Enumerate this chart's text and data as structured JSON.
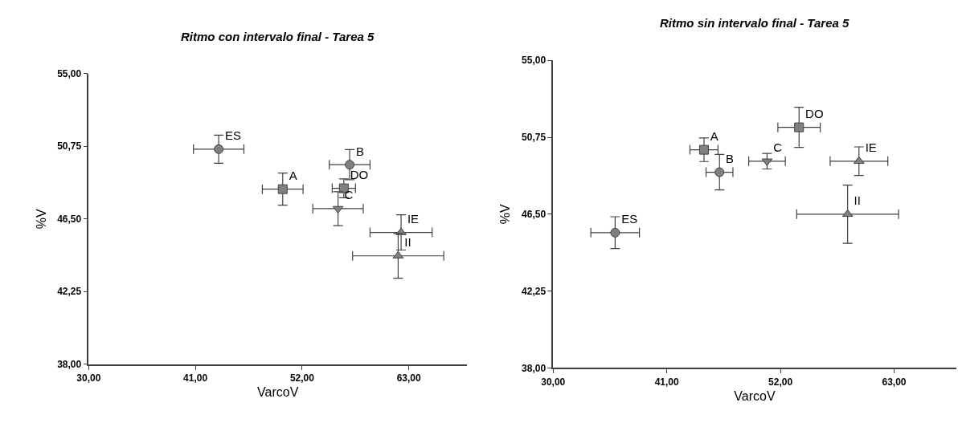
{
  "chart_data": [
    {
      "type": "scatter",
      "title": "Ritmo con intervalo final - Tarea 5",
      "xlabel": "VarcoV",
      "ylabel": "%V",
      "xlim": [
        30,
        69
      ],
      "ylim": [
        38,
        55
      ],
      "xticks": [
        {
          "value": 30,
          "label": "30,00"
        },
        {
          "value": 41,
          "label": "41,00"
        },
        {
          "value": 52,
          "label": "52,00"
        },
        {
          "value": 63,
          "label": "63,00"
        }
      ],
      "yticks": [
        {
          "value": 38,
          "label": "38,00"
        },
        {
          "value": 42.25,
          "label": "42,25"
        },
        {
          "value": 46.5,
          "label": "46,50"
        },
        {
          "value": 50.75,
          "label": "50,75"
        },
        {
          "value": 55,
          "label": "55,00"
        }
      ],
      "series": [
        {
          "name": "ES",
          "color": "#808080",
          "marker": "circle",
          "x": [
            43.4
          ],
          "values": [
            50.58
          ],
          "xerrors": [
            2.6
          ],
          "errors": [
            0.82
          ]
        },
        {
          "name": "A",
          "color": "#808080",
          "marker": "square",
          "x": [
            50.0
          ],
          "values": [
            48.24
          ],
          "xerrors": [
            2.1
          ],
          "errors": [
            0.94
          ]
        },
        {
          "name": "B",
          "color": "#808080",
          "x": [
            56.9
          ],
          "values": [
            49.67
          ],
          "xerrors": [
            2.1
          ],
          "errors": [
            0.88
          ]
        },
        {
          "name": "DO",
          "color": "#808080",
          "marker": "square",
          "x": [
            56.3
          ],
          "values": [
            48.29
          ],
          "xerrors": [
            1.2
          ],
          "errors": [
            0.55
          ]
        },
        {
          "name": "C",
          "color": "#808080",
          "marker": "triangle-down",
          "x": [
            55.7
          ],
          "values": [
            47.1
          ],
          "xerrors": [
            2.6
          ],
          "errors": [
            0.99
          ]
        },
        {
          "name": "IE",
          "color": "#808080",
          "marker": "triangle",
          "x": [
            62.2
          ],
          "values": [
            45.71
          ],
          "xerrors": [
            3.2
          ],
          "errors": [
            1.03
          ]
        },
        {
          "name": "II",
          "color": "#808080",
          "marker": "triangle",
          "x": [
            61.9
          ],
          "values": [
            44.34
          ],
          "xerrors": [
            4.7
          ],
          "errors": [
            1.31
          ]
        }
      ]
    },
    {
      "type": "scatter",
      "title": "Ritmo sin intervalo final - Tarea 5",
      "xlabel": "VarcoV",
      "ylabel": "%V",
      "xlim": [
        30,
        69
      ],
      "ylim": [
        38,
        55
      ],
      "xticks": [
        {
          "value": 30,
          "label": "30,00"
        },
        {
          "value": 41,
          "label": "41,00"
        },
        {
          "value": 52,
          "label": "52,00"
        },
        {
          "value": 63,
          "label": "63,00"
        }
      ],
      "yticks": [
        {
          "value": 38,
          "label": "38,00"
        },
        {
          "value": 42.25,
          "label": "42,25"
        },
        {
          "value": 46.5,
          "label": "46,50"
        },
        {
          "value": 50.75,
          "label": "50,75"
        },
        {
          "value": 55,
          "label": "55,00"
        }
      ],
      "series": [
        {
          "name": "ES",
          "color": "#808080",
          "marker": "circle",
          "x": [
            36.0
          ],
          "values": [
            45.48
          ],
          "xerrors": [
            2.35
          ],
          "errors": [
            0.88
          ]
        },
        {
          "name": "A",
          "color": "#808080",
          "marker": "square",
          "x": [
            44.6
          ],
          "values": [
            50.06
          ],
          "xerrors": [
            1.36
          ],
          "errors": [
            0.65
          ]
        },
        {
          "name": "B",
          "color": "#808080",
          "x": [
            46.1
          ],
          "values": [
            48.82
          ],
          "xerrors": [
            1.3
          ],
          "errors": [
            0.98
          ]
        },
        {
          "name": "C",
          "color": "#808080",
          "marker": "triangle-down",
          "x": [
            50.7
          ],
          "values": [
            49.43
          ],
          "xerrors": [
            1.77
          ],
          "errors": [
            0.43
          ]
        },
        {
          "name": "DO",
          "color": "#808080",
          "marker": "square",
          "x": [
            53.8
          ],
          "values": [
            51.3
          ],
          "xerrors": [
            2.05
          ],
          "errors": [
            1.11
          ]
        },
        {
          "name": "IE",
          "color": "#808080",
          "marker": "triangle",
          "x": [
            59.6
          ],
          "values": [
            49.43
          ],
          "xerrors": [
            2.79
          ],
          "errors": [
            0.79
          ]
        },
        {
          "name": "II",
          "color": "#808080",
          "marker": "triangle",
          "x": [
            58.5
          ],
          "values": [
            46.5
          ],
          "xerrors": [
            4.93
          ],
          "errors": [
            1.61
          ]
        }
      ]
    }
  ]
}
